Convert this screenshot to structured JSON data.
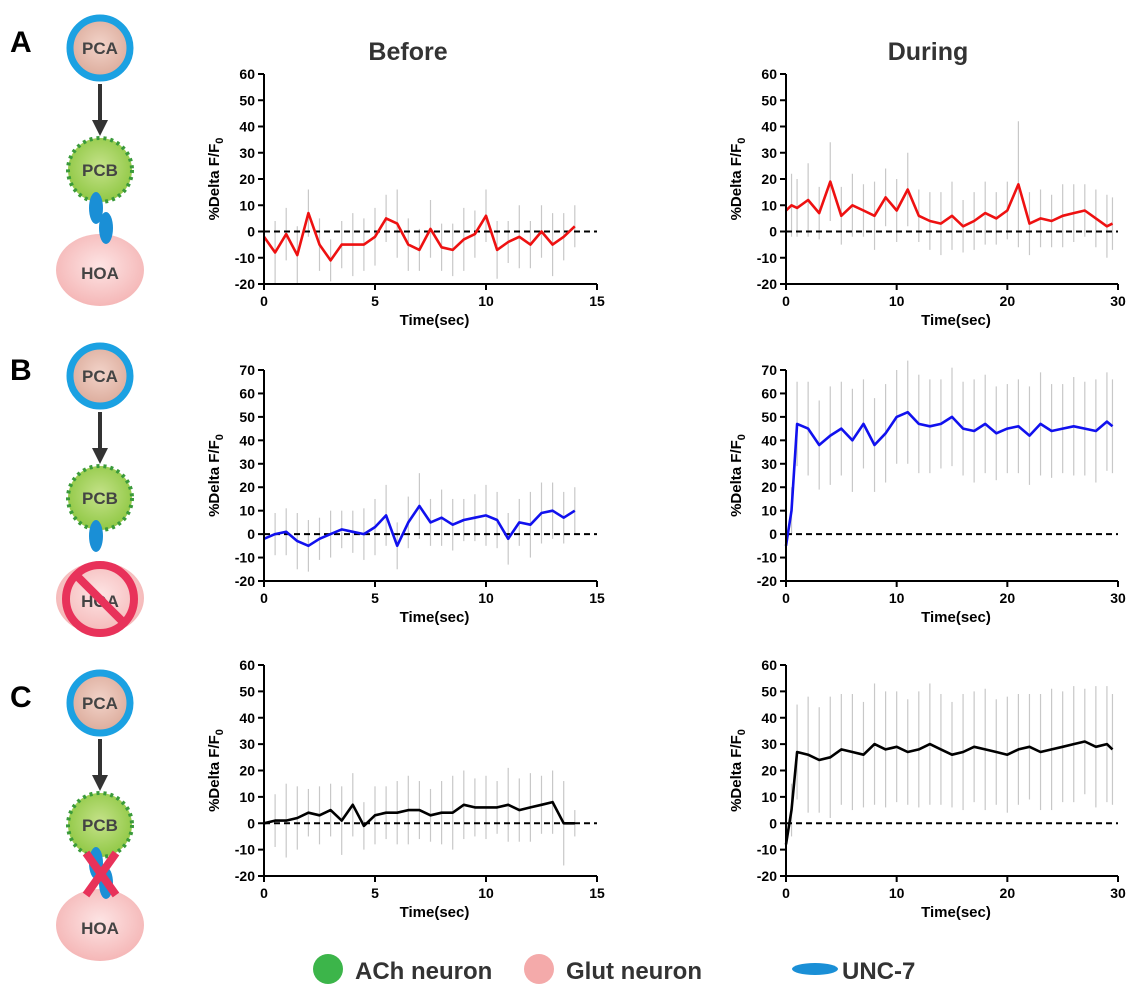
{
  "panel_labels": [
    "A",
    "B",
    "C"
  ],
  "column_titles": [
    "Before",
    "During"
  ],
  "diagrams": [
    {
      "nodes": [
        "PCA",
        "PCB",
        "HOA"
      ]
    },
    {
      "nodes": [
        "PCA",
        "PCB",
        "HOA"
      ]
    },
    {
      "nodes": [
        "PCA",
        "PCB",
        "HOA"
      ]
    }
  ],
  "legend": [
    "ACh neuron",
    "Glut neuron",
    "UNC-7"
  ],
  "chart_data": [
    {
      "type": "line",
      "xlabel": "Time(sec)",
      "ylabel": "%Delta F/F",
      "ylabel_sub": "0",
      "color": "#ee1111",
      "xlim": [
        0,
        15
      ],
      "xticks": [
        0,
        5,
        10,
        15
      ],
      "ylim": [
        -20,
        60
      ],
      "yticks": [
        -20,
        -10,
        0,
        10,
        20,
        30,
        40,
        50,
        60
      ],
      "reference_line": 0,
      "x": [
        0,
        0.5,
        1,
        1.5,
        2,
        2.5,
        3,
        3.5,
        4,
        4.5,
        5,
        5.5,
        6,
        6.5,
        7,
        7.5,
        8,
        8.5,
        9,
        9.5,
        10,
        10.5,
        11,
        11.5,
        12,
        12.5,
        13,
        13.5,
        14
      ],
      "values": [
        -2,
        -8,
        -1,
        -9,
        7,
        -5,
        -11,
        -5,
        -5,
        -5,
        -2,
        5,
        3,
        -5,
        -7,
        1,
        -6,
        -7,
        -3,
        -1,
        6,
        -7,
        -4,
        -2,
        -5,
        0,
        -5,
        -2,
        2
      ],
      "errors": [
        9,
        12,
        10,
        11,
        9,
        10,
        8,
        9,
        12,
        10,
        11,
        9,
        13,
        10,
        8,
        11,
        9,
        10,
        12,
        9,
        10,
        11,
        8,
        12,
        9,
        10,
        12,
        9,
        8
      ]
    },
    {
      "type": "line",
      "xlabel": "Time(sec)",
      "ylabel": "%Delta F/F",
      "ylabel_sub": "0",
      "color": "#ee1111",
      "xlim": [
        0,
        30
      ],
      "xticks": [
        0,
        10,
        20,
        30
      ],
      "ylim": [
        -20,
        60
      ],
      "yticks": [
        -20,
        -10,
        0,
        10,
        20,
        30,
        40,
        50,
        60
      ],
      "reference_line": 0,
      "x": [
        0,
        0.5,
        1,
        2,
        3,
        4,
        5,
        6,
        7,
        8,
        9,
        10,
        11,
        12,
        13,
        14,
        15,
        16,
        17,
        18,
        19,
        20,
        21,
        22,
        23,
        24,
        25,
        26,
        27,
        28,
        29,
        29.5
      ],
      "values": [
        8,
        10,
        9,
        12,
        7,
        19,
        6,
        10,
        8,
        6,
        13,
        8,
        16,
        6,
        4,
        3,
        6,
        2,
        4,
        7,
        5,
        8,
        18,
        3,
        5,
        4,
        6,
        7,
        8,
        5,
        2,
        3
      ],
      "errors": [
        10,
        12,
        11,
        14,
        10,
        15,
        11,
        12,
        10,
        13,
        11,
        12,
        14,
        10,
        11,
        12,
        13,
        10,
        11,
        12,
        10,
        11,
        24,
        12,
        11,
        10,
        12,
        11,
        10,
        11,
        12,
        10
      ]
    },
    {
      "type": "line",
      "xlabel": "Time(sec)",
      "ylabel": "%Delta F/F",
      "ylabel_sub": "0",
      "color": "#1111ee",
      "xlim": [
        0,
        15
      ],
      "xticks": [
        0,
        5,
        10,
        15
      ],
      "ylim": [
        -20,
        70
      ],
      "yticks": [
        -20,
        -10,
        0,
        10,
        20,
        30,
        40,
        50,
        60,
        70
      ],
      "reference_line": 0,
      "x": [
        0,
        0.5,
        1,
        1.5,
        2,
        2.5,
        3,
        3.5,
        4,
        4.5,
        5,
        5.5,
        6,
        6.5,
        7,
        7.5,
        8,
        8.5,
        9,
        9.5,
        10,
        10.5,
        11,
        11.5,
        12,
        12.5,
        13,
        13.5,
        14
      ],
      "values": [
        -2,
        0,
        1,
        -3,
        -5,
        -2,
        0,
        2,
        1,
        0,
        3,
        8,
        -5,
        5,
        12,
        5,
        7,
        4,
        6,
        7,
        8,
        6,
        -2,
        5,
        4,
        9,
        10,
        7,
        10
      ],
      "errors": [
        8,
        9,
        10,
        12,
        11,
        9,
        10,
        8,
        9,
        11,
        12,
        13,
        10,
        11,
        14,
        10,
        12,
        11,
        9,
        10,
        13,
        12,
        11,
        10,
        14,
        13,
        12,
        11,
        10
      ]
    },
    {
      "type": "line",
      "xlabel": "Time(sec)",
      "ylabel": "%Delta F/F",
      "ylabel_sub": "0",
      "color": "#1111ee",
      "xlim": [
        0,
        30
      ],
      "xticks": [
        0,
        10,
        20,
        30
      ],
      "ylim": [
        -20,
        70
      ],
      "yticks": [
        -20,
        -10,
        0,
        10,
        20,
        30,
        40,
        50,
        60,
        70
      ],
      "reference_line": 0,
      "x": [
        0,
        0.5,
        1,
        2,
        3,
        4,
        5,
        6,
        7,
        8,
        9,
        10,
        11,
        12,
        13,
        14,
        15,
        16,
        17,
        18,
        19,
        20,
        21,
        22,
        23,
        24,
        25,
        26,
        27,
        28,
        29,
        29.5
      ],
      "values": [
        -5,
        10,
        47,
        45,
        38,
        42,
        45,
        40,
        47,
        38,
        43,
        50,
        52,
        47,
        46,
        47,
        50,
        45,
        44,
        47,
        43,
        45,
        46,
        42,
        47,
        44,
        45,
        46,
        45,
        44,
        48,
        46
      ],
      "errors": [
        6,
        10,
        18,
        20,
        19,
        21,
        20,
        22,
        19,
        20,
        21,
        20,
        22,
        21,
        20,
        19,
        21,
        20,
        22,
        21,
        20,
        19,
        20,
        21,
        22,
        20,
        19,
        21,
        20,
        22,
        21,
        20
      ]
    },
    {
      "type": "line",
      "xlabel": "Time(sec)",
      "ylabel": "%Delta F/F",
      "ylabel_sub": "0",
      "color": "#000000",
      "xlim": [
        0,
        15
      ],
      "xticks": [
        0,
        5,
        10,
        15
      ],
      "ylim": [
        -20,
        60
      ],
      "yticks": [
        -20,
        -10,
        0,
        10,
        20,
        30,
        40,
        50,
        60
      ],
      "reference_line": 0,
      "x": [
        0,
        0.5,
        1,
        1.5,
        2,
        2.5,
        3,
        3.5,
        4,
        4.5,
        5,
        5.5,
        6,
        6.5,
        7,
        7.5,
        8,
        8.5,
        9,
        9.5,
        10,
        10.5,
        11,
        11.5,
        12,
        12.5,
        13,
        13.5,
        14
      ],
      "values": [
        0,
        1,
        1,
        2,
        4,
        3,
        5,
        1,
        7,
        -1,
        3,
        4,
        4,
        5,
        5,
        3,
        4,
        4,
        7,
        6,
        6,
        6,
        7,
        5,
        6,
        7,
        8,
        0,
        0
      ],
      "errors": [
        8,
        10,
        14,
        12,
        9,
        11,
        10,
        13,
        12,
        9,
        11,
        10,
        12,
        13,
        11,
        10,
        12,
        14,
        13,
        11,
        12,
        10,
        14,
        12,
        13,
        11,
        12,
        16,
        5
      ]
    },
    {
      "type": "line",
      "xlabel": "Time(sec)",
      "ylabel": "%Delta F/F",
      "ylabel_sub": "0",
      "color": "#000000",
      "xlim": [
        0,
        30
      ],
      "xticks": [
        0,
        10,
        20,
        30
      ],
      "ylim": [
        -20,
        60
      ],
      "yticks": [
        -20,
        -10,
        0,
        10,
        20,
        30,
        40,
        50,
        60
      ],
      "reference_line": 0,
      "x": [
        0,
        0.5,
        1,
        2,
        3,
        4,
        5,
        6,
        7,
        8,
        9,
        10,
        11,
        12,
        13,
        14,
        15,
        16,
        17,
        18,
        19,
        20,
        21,
        22,
        23,
        24,
        25,
        26,
        27,
        28,
        29,
        29.5
      ],
      "values": [
        -8,
        5,
        27,
        26,
        24,
        25,
        28,
        27,
        26,
        30,
        28,
        29,
        27,
        28,
        30,
        28,
        26,
        27,
        29,
        28,
        27,
        26,
        28,
        29,
        27,
        28,
        29,
        30,
        31,
        29,
        30,
        28
      ],
      "errors": [
        6,
        10,
        18,
        22,
        20,
        23,
        21,
        22,
        20,
        23,
        22,
        21,
        20,
        22,
        23,
        21,
        20,
        22,
        21,
        23,
        20,
        22,
        21,
        20,
        22,
        23,
        21,
        22,
        20,
        23,
        22,
        21
      ]
    }
  ]
}
